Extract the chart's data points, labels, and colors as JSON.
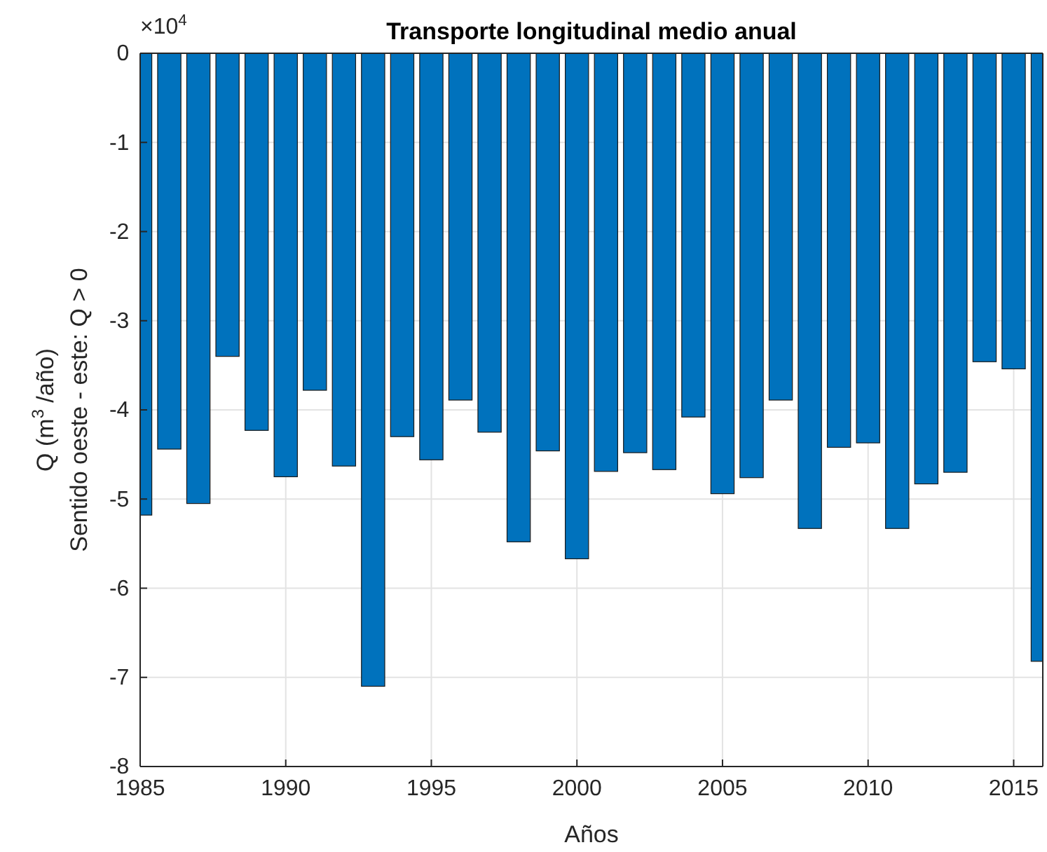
{
  "chart_data": {
    "type": "bar",
    "title": "Transporte longitudinal medio anual",
    "xlabel": "Años",
    "ylabel": "Q (m$^{3}$ /año)\nSentido oeste - este: Q > 0",
    "x": [
      1985,
      1986,
      1987,
      1988,
      1989,
      1990,
      1991,
      1992,
      1993,
      1994,
      1995,
      1996,
      1997,
      1998,
      1999,
      2000,
      2001,
      2002,
      2003,
      2004,
      2005,
      2006,
      2007,
      2008,
      2009,
      2010,
      2011,
      2012,
      2013,
      2014,
      2015,
      2016
    ],
    "values": [
      -5.18,
      -4.44,
      -5.05,
      -3.4,
      -4.23,
      -4.75,
      -3.78,
      -4.63,
      -7.1,
      -4.3,
      -4.56,
      -3.89,
      -4.25,
      -5.48,
      -4.46,
      -5.67,
      -4.69,
      -4.48,
      -4.67,
      -4.08,
      -4.94,
      -4.76,
      -3.89,
      -5.33,
      -4.42,
      -4.37,
      -5.33,
      -4.83,
      -4.7,
      -3.46,
      -3.54,
      -6.82
    ],
    "color": "#0072bd",
    "xlim": [
      1985,
      2016
    ],
    "xticks": [
      1985,
      1990,
      1995,
      2000,
      2005,
      2010,
      2015
    ],
    "ylim": [
      -8,
      0
    ],
    "yticks": [
      -8,
      -7,
      -6,
      -5,
      -4,
      -3,
      -2,
      -1,
      0
    ],
    "annotations": [
      "×10$^{4}$"
    ],
    "grid": true
  }
}
